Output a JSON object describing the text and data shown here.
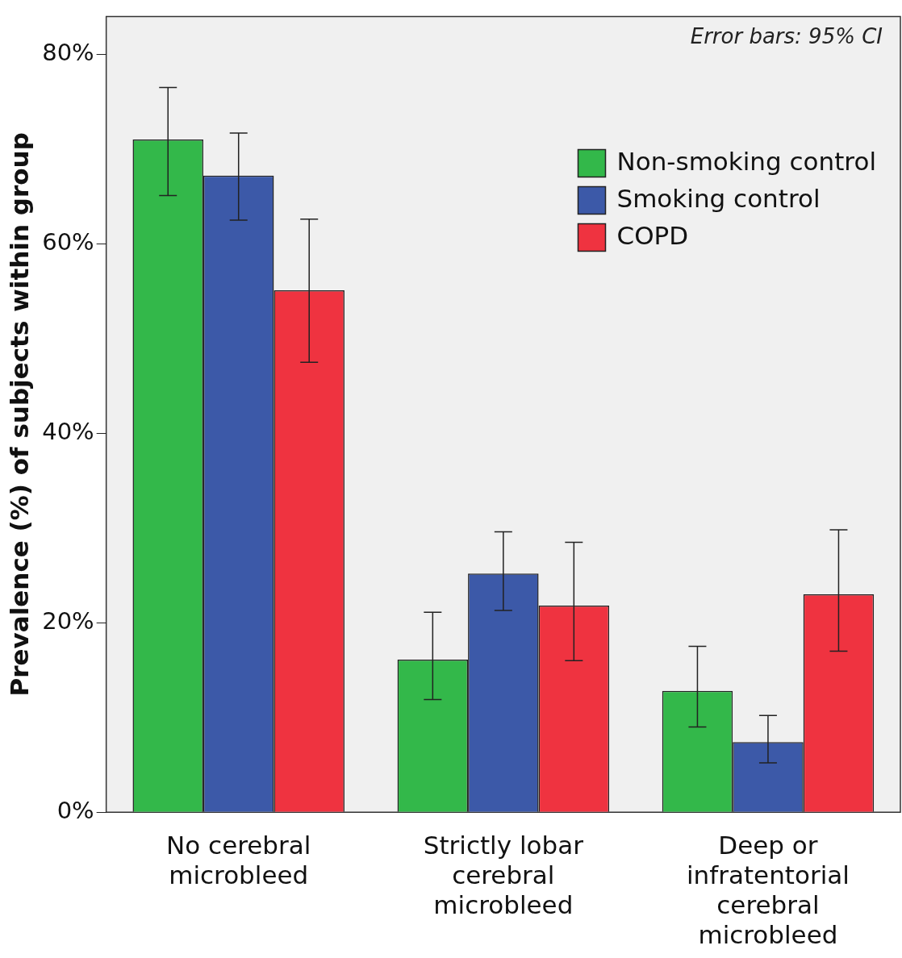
{
  "chart_data": {
    "type": "bar",
    "ylabel": "Prevalence (%) of subjects within group",
    "categories": [
      "No cerebral microbleed",
      "Strictly lobar cerebral microbleed",
      "Deep or infratentorial cerebral microbleed"
    ],
    "series": [
      {
        "name": "Non-smoking control",
        "color": "#33b84a",
        "values": [
          71.0,
          16.1,
          12.8
        ],
        "errors": [
          [
            65.1,
            76.5
          ],
          [
            11.9,
            21.1
          ],
          [
            9.0,
            17.5
          ]
        ]
      },
      {
        "name": "Smoking control",
        "color": "#3c59a8",
        "values": [
          67.2,
          25.2,
          7.4
        ],
        "errors": [
          [
            62.5,
            71.7
          ],
          [
            21.3,
            29.6
          ],
          [
            5.2,
            10.2
          ]
        ]
      },
      {
        "name": "COPD",
        "color": "#ef3340",
        "values": [
          55.1,
          21.8,
          23.0
        ],
        "errors": [
          [
            47.5,
            62.6
          ],
          [
            16.0,
            28.5
          ],
          [
            17.0,
            29.8
          ]
        ]
      }
    ],
    "ylim": [
      0,
      84
    ],
    "yticks": [
      {
        "value": 0,
        "label": "0%"
      },
      {
        "value": 20,
        "label": "20%"
      },
      {
        "value": 40,
        "label": "40%"
      },
      {
        "value": 60,
        "label": "60%"
      },
      {
        "value": 80,
        "label": "80%"
      }
    ],
    "annotations": [
      "Error bars: 95% CI"
    ],
    "legend": "top right",
    "grid": false
  }
}
